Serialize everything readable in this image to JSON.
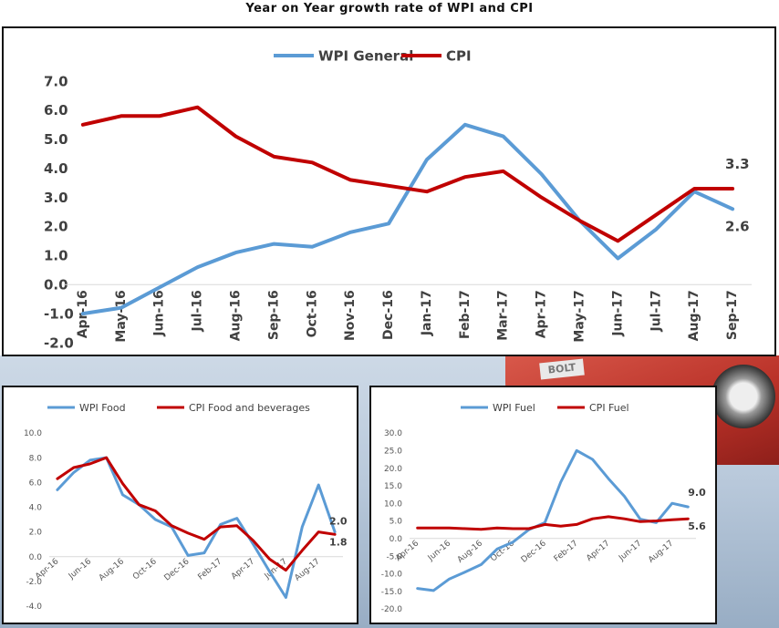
{
  "page_title": "Year on Year growth rate of WPI and CPI",
  "background_text": "BOLT",
  "colors": {
    "wpi": "#5b9bd5",
    "cpi": "#c00000",
    "axis": "#d9d9d9",
    "text": "#404040"
  },
  "chart_data": [
    {
      "id": "main",
      "type": "line",
      "title": "",
      "categories": [
        "Apr-16",
        "May-16",
        "Jun-16",
        "Jul-16",
        "Aug-16",
        "Sep-16",
        "Oct-16",
        "Nov-16",
        "Dec-16",
        "Jan-17",
        "Feb-17",
        "Mar-17",
        "Apr-17",
        "May-17",
        "Jun-17",
        "Jul-17",
        "Aug-17",
        "Sep-17"
      ],
      "series": [
        {
          "name": "WPI General",
          "color": "#5b9bd5",
          "values": [
            -1.0,
            -0.8,
            -0.1,
            0.6,
            1.1,
            1.4,
            1.3,
            1.8,
            2.1,
            4.3,
            5.5,
            5.1,
            3.8,
            2.2,
            0.9,
            1.9,
            3.2,
            2.6
          ]
        },
        {
          "name": "CPI",
          "color": "#c00000",
          "values": [
            5.5,
            5.8,
            5.8,
            6.1,
            5.1,
            4.4,
            4.2,
            3.6,
            3.4,
            3.2,
            3.7,
            3.9,
            3.0,
            2.2,
            1.5,
            2.4,
            3.3,
            3.3
          ]
        }
      ],
      "yticks": [
        "7.0",
        "6.0",
        "5.0",
        "4.0",
        "3.0",
        "2.0",
        "1.0",
        "0.0",
        "-1.0",
        "-2.0"
      ],
      "ylim": [
        -2,
        7
      ],
      "end_labels": [
        "3.3",
        "2.6"
      ],
      "grid": false,
      "legend_position": "top-center"
    },
    {
      "id": "food",
      "type": "line",
      "title": "",
      "categories": [
        "Apr-16",
        "May-16",
        "Jun-16",
        "Jul-16",
        "Aug-16",
        "Sep-16",
        "Oct-16",
        "Nov-16",
        "Dec-16",
        "Jan-17",
        "Feb-17",
        "Mar-17",
        "Apr-17",
        "May-17",
        "Jun-17",
        "Jul-17",
        "Aug-17",
        "Sep-17"
      ],
      "xtick_labels": [
        "Apr-16",
        "Jun-16",
        "Aug-16",
        "Oct-16",
        "Dec-16",
        "Feb-17",
        "Apr-17",
        "Jun-17",
        "Aug-17"
      ],
      "series": [
        {
          "name": "WPI Food",
          "color": "#5b9bd5",
          "values": [
            5.4,
            6.8,
            7.8,
            8.0,
            5.0,
            4.2,
            3.0,
            2.4,
            0.1,
            0.3,
            2.6,
            3.1,
            1.0,
            -1.2,
            -3.3,
            2.4,
            5.8,
            2.0
          ]
        },
        {
          "name": "CPI Food and beverages",
          "color": "#c00000",
          "values": [
            6.3,
            7.2,
            7.5,
            8.0,
            5.9,
            4.2,
            3.7,
            2.5,
            1.9,
            1.4,
            2.4,
            2.5,
            1.3,
            -0.2,
            -1.1,
            0.5,
            2.0,
            1.8
          ]
        }
      ],
      "yticks": [
        "10.0",
        "8.0",
        "6.0",
        "4.0",
        "2.0",
        "0.0",
        "-2.0",
        "-4.0"
      ],
      "ylim": [
        -4,
        10
      ],
      "end_labels": [
        "2.0",
        "1.8"
      ],
      "legend_position": "top-center"
    },
    {
      "id": "fuel",
      "type": "line",
      "title": "",
      "categories": [
        "Apr-16",
        "May-16",
        "Jun-16",
        "Jul-16",
        "Aug-16",
        "Sep-16",
        "Oct-16",
        "Nov-16",
        "Dec-16",
        "Jan-17",
        "Feb-17",
        "Mar-17",
        "Apr-17",
        "May-17",
        "Jun-17",
        "Jul-17",
        "Aug-17",
        "Sep-17"
      ],
      "xtick_labels": [
        "Apr-16",
        "Jun-16",
        "Aug-16",
        "Oct-16",
        "Dec-16",
        "Feb-17",
        "Apr-17",
        "Jun-17",
        "Aug-17"
      ],
      "series": [
        {
          "name": "WPI Fuel",
          "color": "#5b9bd5",
          "values": [
            -14.2,
            -14.8,
            -11.5,
            -9.5,
            -7.4,
            -3.0,
            -1.0,
            2.5,
            4.5,
            16.0,
            25.0,
            22.5,
            17.0,
            12.0,
            5.5,
            4.5,
            10.0,
            9.0
          ]
        },
        {
          "name": "CPI Fuel",
          "color": "#c00000",
          "values": [
            3.0,
            3.0,
            3.0,
            2.8,
            2.6,
            3.0,
            2.8,
            2.8,
            4.0,
            3.5,
            4.0,
            5.6,
            6.2,
            5.6,
            4.8,
            5.0,
            5.3,
            5.6
          ]
        }
      ],
      "yticks": [
        "30.0",
        "25.0",
        "20.0",
        "15.0",
        "10.0",
        "5.0",
        "0.0",
        "-5.0",
        "-10.0",
        "-15.0",
        "-20.0"
      ],
      "ylim": [
        -20,
        30
      ],
      "end_labels": [
        "9.0",
        "5.6"
      ],
      "legend_position": "top-center"
    }
  ]
}
